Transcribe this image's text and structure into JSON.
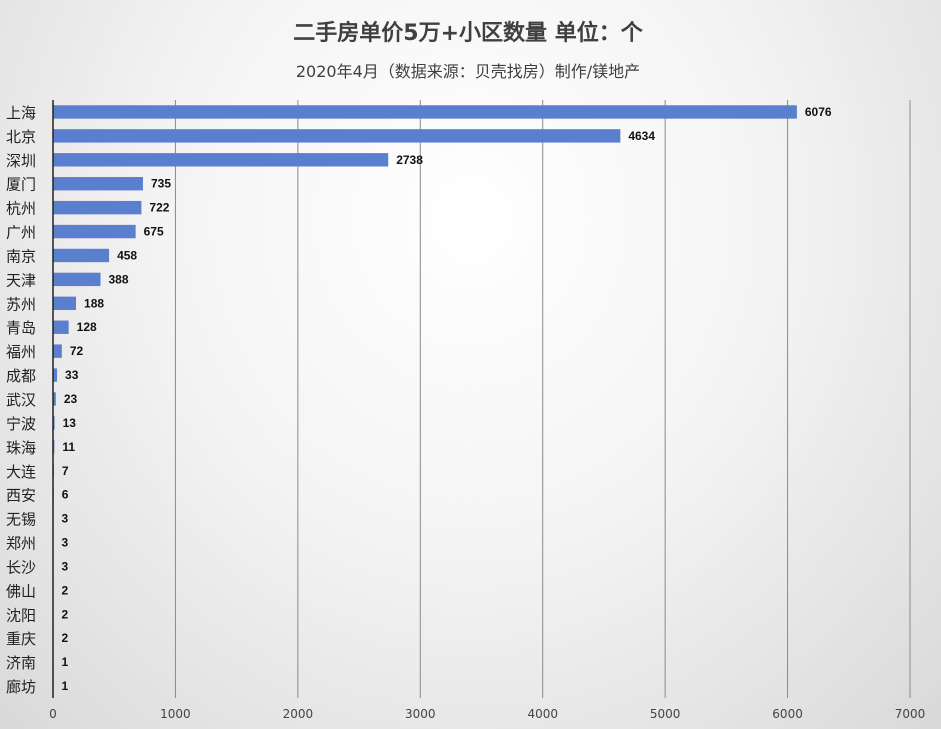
{
  "chart_data": {
    "type": "bar",
    "orientation": "horizontal",
    "title": "二手房单价5万+小区数量 单位：个",
    "subtitle": "2020年4月（数据来源：贝壳找房）制作/镁地产",
    "categories": [
      "上海",
      "北京",
      "深圳",
      "厦门",
      "杭州",
      "广州",
      "南京",
      "天津",
      "苏州",
      "青岛",
      "福州",
      "成都",
      "武汉",
      "宁波",
      "珠海",
      "大连",
      "西安",
      "无锡",
      "郑州",
      "长沙",
      "佛山",
      "沈阳",
      "重庆",
      "济南",
      "廊坊"
    ],
    "values": [
      6076,
      4634,
      2738,
      735,
      722,
      675,
      458,
      388,
      188,
      128,
      72,
      33,
      23,
      13,
      11,
      7,
      6,
      3,
      3,
      3,
      2,
      2,
      2,
      1,
      1
    ],
    "xlim": [
      0,
      7000
    ],
    "xticks": [
      0,
      1000,
      2000,
      3000,
      4000,
      5000,
      6000,
      7000
    ],
    "grid": "vertical",
    "legend": "none",
    "bar_color": "#5b7fcf"
  }
}
